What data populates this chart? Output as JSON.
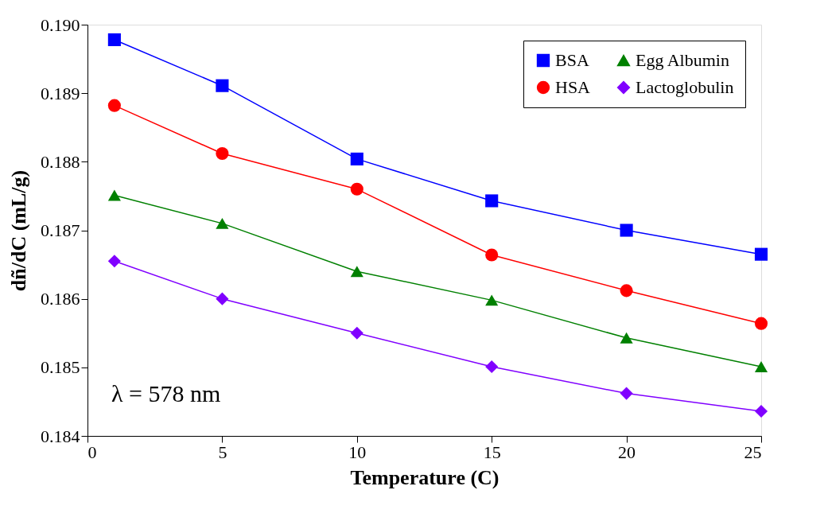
{
  "chart_data": {
    "type": "line",
    "xlabel": "Temperature (C)",
    "ylabel": "dñ/dC (mL/g)",
    "x": [
      1,
      5,
      10,
      15,
      20,
      25
    ],
    "xlim": [
      0,
      25
    ],
    "xticks": [
      0,
      5,
      10,
      15,
      20,
      25
    ],
    "ylim": [
      0.184,
      0.19
    ],
    "yticks": [
      0.184,
      0.185,
      0.186,
      0.187,
      0.188,
      0.189,
      {
        "value": 0.19,
        "label": "0.190"
      }
    ],
    "series": [
      {
        "name": "BSA",
        "color": "#0000ff",
        "marker": "square",
        "values": [
          0.18978,
          0.18911,
          0.18804,
          0.18743,
          0.187,
          0.18665
        ]
      },
      {
        "name": "HSA",
        "color": "#ff0000",
        "marker": "circle",
        "values": [
          0.18882,
          0.18812,
          0.1876,
          0.18664,
          0.18612,
          0.18564
        ]
      },
      {
        "name": "Egg Albumin",
        "color": "#008000",
        "marker": "triangle",
        "values": [
          0.18751,
          0.1871,
          0.1864,
          0.18598,
          0.18543,
          0.18501
        ]
      },
      {
        "name": "Lactoglobulin",
        "color": "#8000ff",
        "marker": "diamond",
        "values": [
          0.18655,
          0.186,
          0.1855,
          0.18501,
          0.18462,
          0.18436
        ]
      }
    ],
    "annotations": [
      "λ = 578 nm"
    ],
    "legend": "top right",
    "grid": false,
    "line_style": "solid"
  }
}
